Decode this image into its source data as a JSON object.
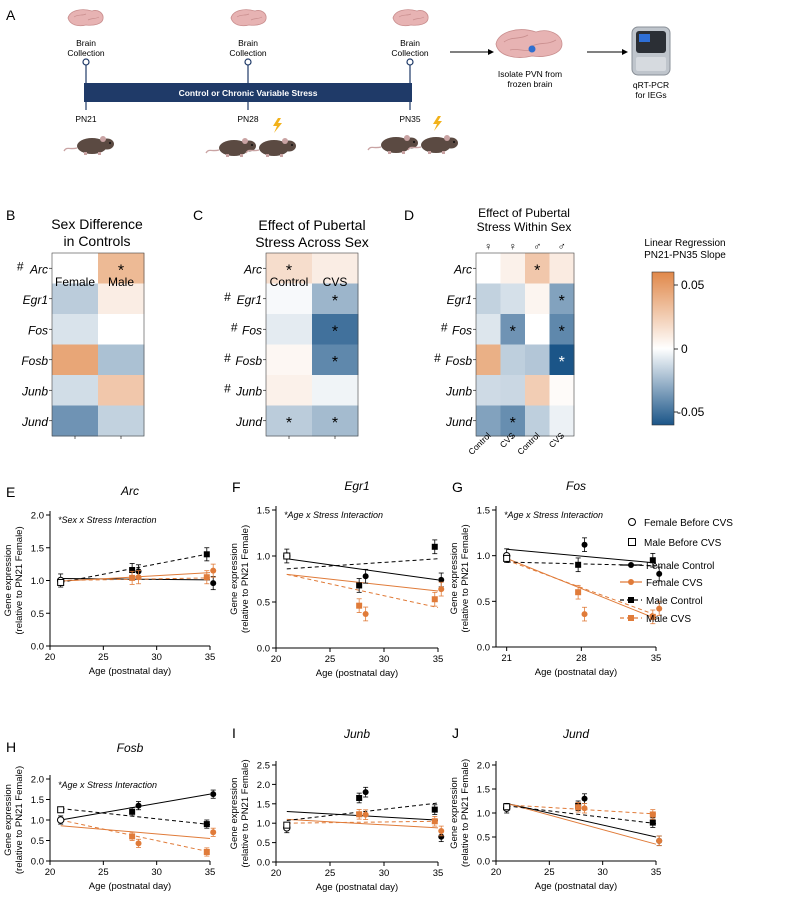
{
  "panel_a": {
    "letter": "A",
    "brain_collection_label": "Brain Collection",
    "timeline_label": "Control or Chronic Variable Stress",
    "timepoints": [
      "PN21",
      "PN28",
      "PN35"
    ],
    "isolate_label": "Isolate PVN from frozen brain",
    "qpcr_label": "qRT-PCR for IEGs"
  },
  "heatmaps": {
    "genes": [
      "Arc",
      "Egr1",
      "Fos",
      "Fosb",
      "Junb",
      "Jund"
    ],
    "colorbar": {
      "title": "Linear Regression PN21-PN35 Slope",
      "ticks": [
        "0.05",
        "0",
        "-0.05"
      ],
      "high_color": "#E0884A",
      "mid_color": "#FFFFFF",
      "low_color": "#1B5588"
    },
    "panels": [
      {
        "letter": "B",
        "title": "Sex Difference in Controls",
        "columns": [
          "Female",
          "Male"
        ],
        "column_symbols": [],
        "hash_rows": [
          true,
          false,
          false,
          false,
          false,
          false
        ],
        "values": [
          [
            0.0,
            0.035
          ],
          [
            -0.018,
            0.009
          ],
          [
            -0.01,
            0.0
          ],
          [
            0.045,
            -0.022
          ],
          [
            -0.012,
            0.028
          ],
          [
            -0.038,
            -0.016
          ]
        ],
        "stars": [
          [
            false,
            true
          ],
          [
            false,
            false
          ],
          [
            false,
            false
          ],
          [
            false,
            false
          ],
          [
            false,
            false
          ],
          [
            false,
            false
          ]
        ]
      },
      {
        "letter": "C",
        "title": "Effect of Pubertal Stress Across Sex",
        "columns": [
          "Control",
          "CVS"
        ],
        "column_symbols": [],
        "hash_rows": [
          false,
          true,
          true,
          true,
          true,
          false
        ],
        "values": [
          [
            0.017,
            0.009
          ],
          [
            -0.002,
            -0.026
          ],
          [
            -0.007,
            -0.05
          ],
          [
            0.004,
            -0.042
          ],
          [
            0.007,
            -0.004
          ],
          [
            -0.018,
            -0.024
          ]
        ],
        "stars": [
          [
            true,
            false
          ],
          [
            false,
            true
          ],
          [
            false,
            true
          ],
          [
            false,
            true
          ],
          [
            false,
            false
          ],
          [
            true,
            true
          ]
        ]
      },
      {
        "letter": "D",
        "title": "Effect of Pubertal Stress Within Sex",
        "columns": [
          "Control",
          "CVS",
          "Control",
          "CVS"
        ],
        "column_symbols": [
          "♀",
          "♀",
          "♂",
          "♂"
        ],
        "hash_rows": [
          false,
          false,
          true,
          true,
          false,
          false
        ],
        "values": [
          [
            0.0,
            0.007,
            0.028,
            0.01
          ],
          [
            -0.016,
            -0.011,
            0.005,
            -0.033
          ],
          [
            -0.009,
            -0.038,
            0.0,
            -0.042
          ],
          [
            0.04,
            -0.017,
            -0.02,
            -0.06
          ],
          [
            -0.013,
            -0.014,
            0.025,
            0.002
          ],
          [
            -0.033,
            -0.04,
            -0.017,
            -0.005
          ]
        ],
        "stars": [
          [
            false,
            false,
            true,
            false
          ],
          [
            false,
            false,
            false,
            true
          ],
          [
            false,
            true,
            false,
            true
          ],
          [
            false,
            false,
            false,
            true
          ],
          [
            false,
            false,
            false,
            false
          ],
          [
            false,
            true,
            false,
            false
          ]
        ],
        "white_stars": [
          [
            false,
            false,
            false,
            false
          ],
          [
            false,
            false,
            false,
            false
          ],
          [
            false,
            false,
            false,
            false
          ],
          [
            false,
            false,
            false,
            true
          ],
          [
            false,
            false,
            false,
            false
          ],
          [
            false,
            false,
            false,
            false
          ]
        ]
      }
    ]
  },
  "legend": {
    "entries": [
      "Female Before CVS",
      "Male Before CVS",
      "Female Control",
      "Female CVS",
      "Male Control",
      "Male CVS"
    ],
    "female_color": "#000000",
    "cvs_color": "#E07B39"
  },
  "chart_data": [
    {
      "letter": "E",
      "type": "line",
      "title": "Arc",
      "annotation": "*Sex x Stress Interaction",
      "xlabel": "Age (postnatal day)",
      "ylabel": "Gene expression (relative to PN21 Female)",
      "xlim": [
        20,
        35
      ],
      "ylim": [
        0,
        2.0
      ],
      "xticks": [
        20,
        25,
        30,
        35
      ],
      "yticks": [
        0.0,
        0.5,
        1.0,
        1.5,
        2.0
      ],
      "x": [
        21,
        28,
        35
      ],
      "baseline": {
        "female": 1.0,
        "male": 0.97
      },
      "means": {
        "female_control": [
          1.14,
          0.96
        ],
        "female_cvs": [
          1.05,
          1.15
        ],
        "male_control": [
          1.16,
          1.4
        ],
        "male_cvs": [
          1.04,
          1.05
        ]
      },
      "fits": {
        "female_control": [
          1.03,
          1.01
        ],
        "female_cvs": [
          0.99,
          1.12
        ],
        "male_control": [
          0.97,
          1.41
        ],
        "male_cvs": [
          1.0,
          1.04
        ]
      }
    },
    {
      "letter": "F",
      "type": "line",
      "title": "Egr1",
      "annotation": "*Age x Stress Interaction",
      "xlabel": "Age (postnatal day)",
      "ylabel": "Gene expression (relative to PN21 Female)",
      "xlim": [
        20,
        35
      ],
      "ylim": [
        0,
        1.5
      ],
      "xticks": [
        20,
        25,
        30,
        35
      ],
      "yticks": [
        0.0,
        0.5,
        1.0,
        1.5
      ],
      "x": [
        21,
        28,
        35
      ],
      "baseline": {
        "female": 1.0,
        "male": 1.0
      },
      "means": {
        "female_control": [
          0.78,
          0.74
        ],
        "female_cvs": [
          0.37,
          0.64
        ],
        "male_control": [
          0.68,
          1.1
        ],
        "male_cvs": [
          0.46,
          0.53
        ]
      },
      "fits": {
        "female_control": [
          0.97,
          0.74
        ],
        "female_cvs": [
          0.8,
          0.62
        ],
        "male_control": [
          0.86,
          0.97
        ],
        "male_cvs": [
          0.8,
          0.44
        ]
      }
    },
    {
      "letter": "G",
      "type": "line",
      "title": "Fos",
      "annotation": "*Age x Stress Interaction",
      "xlabel": "Age (postnatal day)",
      "ylabel": "Gene expression (relative to PN21 Female)",
      "xlim": [
        20,
        35
      ],
      "ylim": [
        0,
        1.5
      ],
      "xticks": [
        21,
        28,
        35
      ],
      "yticks": [
        0.0,
        0.5,
        1.0,
        1.5
      ],
      "x": [
        21,
        28,
        35
      ],
      "baseline": {
        "female": 1.0,
        "male": 0.97
      },
      "means": {
        "female_control": [
          1.12,
          0.8
        ],
        "female_cvs": [
          0.36,
          0.42
        ],
        "male_control": [
          0.9,
          0.95
        ],
        "male_cvs": [
          0.6,
          0.33
        ]
      },
      "fits": {
        "female_control": [
          1.07,
          0.92
        ],
        "female_cvs": [
          0.97,
          0.31
        ],
        "male_control": [
          0.93,
          0.89
        ],
        "male_cvs": [
          0.95,
          0.35
        ]
      }
    },
    {
      "letter": "H",
      "type": "line",
      "title": "Fosb",
      "annotation": "*Age x Stress Interaction",
      "xlabel": "Age (postnatal day)",
      "ylabel": "Gene expression (relative to PN21 Female)",
      "xlim": [
        20,
        35
      ],
      "ylim": [
        0,
        2.0
      ],
      "xticks": [
        20,
        25,
        30,
        35
      ],
      "yticks": [
        0.0,
        0.5,
        1.0,
        1.5,
        2.0
      ],
      "x": [
        21,
        28,
        35
      ],
      "baseline": {
        "female": 1.0,
        "male": 1.25
      },
      "means": {
        "female_control": [
          1.35,
          1.63
        ],
        "female_cvs": [
          0.43,
          0.7
        ],
        "male_control": [
          1.2,
          0.9
        ],
        "male_cvs": [
          0.6,
          0.22
        ]
      },
      "fits": {
        "female_control": [
          1.0,
          1.63
        ],
        "female_cvs": [
          0.86,
          0.55
        ],
        "male_control": [
          1.28,
          0.89
        ],
        "male_cvs": [
          1.0,
          0.22
        ]
      }
    },
    {
      "letter": "I",
      "type": "line",
      "title": "Junb",
      "annotation": "",
      "xlabel": "Age (postnatal day)",
      "ylabel": "Gene expression (relative to PN21 Female)",
      "xlim": [
        20,
        35
      ],
      "ylim": [
        0,
        2.5
      ],
      "xticks": [
        20,
        25,
        30,
        35
      ],
      "yticks": [
        0.0,
        0.5,
        1.0,
        1.5,
        2.0,
        2.5
      ],
      "x": [
        21,
        28,
        35
      ],
      "baseline": {
        "female": 0.88,
        "male": 0.95
      },
      "means": {
        "female_control": [
          1.8,
          0.65
        ],
        "female_cvs": [
          1.22,
          0.8
        ],
        "male_control": [
          1.65,
          1.35
        ],
        "male_cvs": [
          1.23,
          1.05
        ]
      },
      "fits": {
        "female_control": [
          1.3,
          1.08
        ],
        "female_cvs": [
          1.1,
          0.88
        ],
        "male_control": [
          1.07,
          1.52
        ],
        "male_cvs": [
          1.0,
          1.05
        ]
      }
    },
    {
      "letter": "J",
      "type": "line",
      "title": "Jund",
      "annotation": "",
      "xlabel": "Age (postnatal day)",
      "ylabel": "Gene expression (relative to PN21 Female)",
      "xlim": [
        20,
        35
      ],
      "ylim": [
        0,
        2.0
      ],
      "xticks": [
        20,
        25,
        30,
        35
      ],
      "yticks": [
        0.0,
        0.5,
        1.0,
        1.5,
        2.0
      ],
      "x": [
        21,
        28,
        35
      ],
      "baseline": {
        "female": 1.1,
        "male": 1.13
      },
      "means": {
        "female_control": [
          1.3,
          0.42
        ],
        "female_cvs": [
          1.1,
          0.42
        ],
        "male_control": [
          1.15,
          0.8
        ],
        "male_cvs": [
          1.12,
          0.97
        ]
      },
      "fits": {
        "female_control": [
          1.2,
          0.5
        ],
        "female_cvs": [
          1.2,
          0.35
        ],
        "male_control": [
          1.15,
          0.78
        ],
        "male_cvs": [
          1.17,
          0.98
        ]
      }
    }
  ]
}
